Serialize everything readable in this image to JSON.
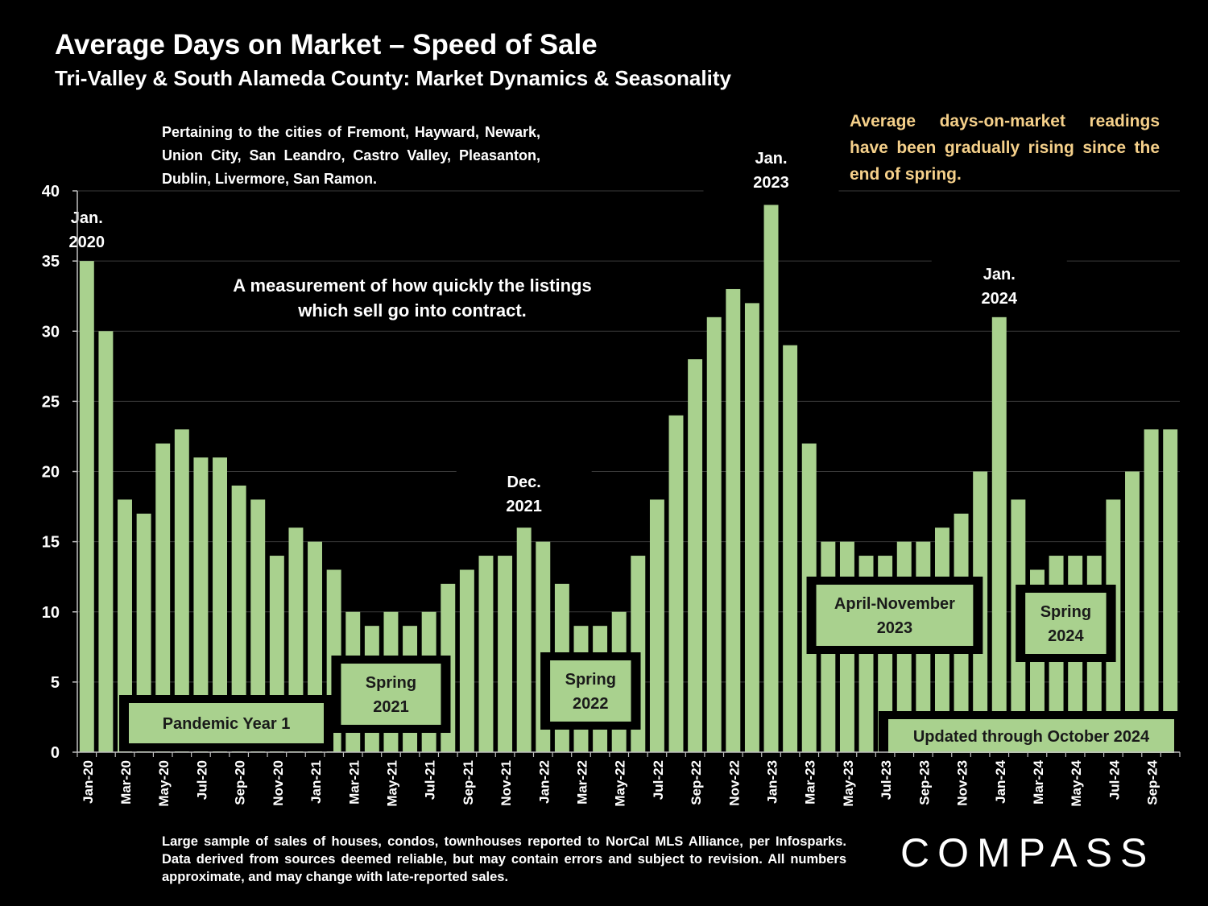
{
  "header": {
    "title": "Average Days on Market – Speed of Sale",
    "subtitle": "Tri-Valley & South Alameda County: Market Dynamics & Seasonality"
  },
  "notes": {
    "cities": "Pertaining to the cities of Fremont, Hayward, Newark, Union City, San Leandro, Castro Valley, Pleasanton, Dublin, Livermore, San Ramon.",
    "trend": "Average days-on-market readings have been gradually rising since the end of spring.",
    "footer": "Large sample of sales of houses, condos, townhouses reported to NorCal MLS Alliance, per Infosparks. Data derived from sources deemed reliable, but may contain errors and subject to revision. All numbers approximate, and may change with late-reported sales."
  },
  "brand": {
    "logo_text": "COMPASS"
  },
  "colors": {
    "bar": "#A9D18E",
    "background": "#000000",
    "accent_text": "#F5D08A",
    "grid": "#3A3A3A"
  },
  "chart_data": {
    "type": "bar",
    "title": "Average Days on Market – Speed of Sale",
    "ylim": [
      0,
      40
    ],
    "yticks": [
      0,
      5,
      10,
      15,
      20,
      25,
      30,
      35,
      40
    ],
    "grid": true,
    "categories": [
      "Jan-20",
      "Feb-20",
      "Mar-20",
      "Apr-20",
      "May-20",
      "Jun-20",
      "Jul-20",
      "Aug-20",
      "Sep-20",
      "Oct-20",
      "Nov-20",
      "Dec-20",
      "Jan-21",
      "Feb-21",
      "Mar-21",
      "Apr-21",
      "May-21",
      "Jun-21",
      "Jul-21",
      "Aug-21",
      "Sep-21",
      "Oct-21",
      "Nov-21",
      "Dec-21",
      "Jan-22",
      "Feb-22",
      "Mar-22",
      "Apr-22",
      "May-22",
      "Jun-22",
      "Jul-22",
      "Aug-22",
      "Sep-22",
      "Oct-22",
      "Nov-22",
      "Dec-22",
      "Jan-23",
      "Feb-23",
      "Mar-23",
      "Apr-23",
      "May-23",
      "Jun-23",
      "Jul-23",
      "Aug-23",
      "Sep-23",
      "Oct-23",
      "Nov-23",
      "Dec-23",
      "Jan-24",
      "Feb-24",
      "Mar-24",
      "Apr-24",
      "May-24",
      "Jun-24",
      "Jul-24",
      "Aug-24",
      "Sep-24",
      "Oct-24"
    ],
    "tick_labels": [
      "Jan-20",
      "Mar-20",
      "May-20",
      "Jul-20",
      "Sep-20",
      "Nov-20",
      "Jan-21",
      "Mar-21",
      "May-21",
      "Jul-21",
      "Sep-21",
      "Nov-21",
      "Jan-22",
      "Mar-22",
      "May-22",
      "Jul-22",
      "Sep-22",
      "Nov-22",
      "Jan-23",
      "Mar-23",
      "May-23",
      "Jul-23",
      "Sep-23",
      "Nov-23",
      "Jan-24",
      "Mar-24",
      "May-24",
      "Jul-24",
      "Sep-24"
    ],
    "values": [
      35,
      30,
      18,
      17,
      22,
      23,
      21,
      21,
      19,
      18,
      14,
      16,
      15,
      13,
      10,
      9,
      10,
      9,
      10,
      12,
      13,
      14,
      14,
      16,
      15,
      12,
      9,
      9,
      10,
      14,
      18,
      24,
      28,
      31,
      33,
      32,
      39,
      29,
      22,
      15,
      15,
      14,
      14,
      15,
      15,
      16,
      17,
      20,
      31,
      18,
      13,
      14,
      14,
      14,
      18,
      20,
      23,
      23
    ],
    "annotations": [
      {
        "text": "Jan.\n2020",
        "index": 0
      },
      {
        "text": "Dec.\n2021",
        "index": 23
      },
      {
        "text": "Jan.\n2023",
        "index": 36
      },
      {
        "text": "Jan.\n2024",
        "index": 48
      },
      {
        "text": "A measurement of how quickly the listings\nwhich sell go into contract."
      },
      {
        "text": "Pandemic Year 1",
        "from": 2,
        "to": 12
      },
      {
        "text": "Spring\n2021",
        "from": 14,
        "to": 18
      },
      {
        "text": "Spring\n2022",
        "from": 25,
        "to": 28
      },
      {
        "text": "April-November\n2023",
        "from": 39,
        "to": 46
      },
      {
        "text": "Spring\n2024",
        "from": 50,
        "to": 53
      },
      {
        "text": "Updated through October 2024",
        "from": 44,
        "to": 57
      }
    ]
  }
}
